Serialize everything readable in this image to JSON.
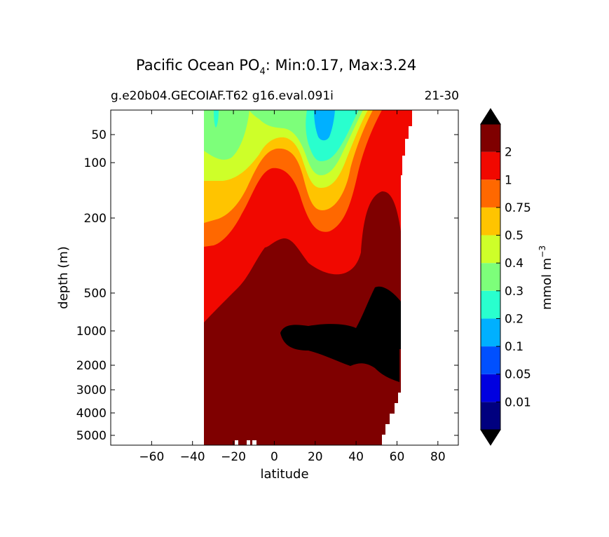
{
  "chart_data": {
    "type": "contourf",
    "title_main": "Pacific Ocean PO",
    "title_sub": "4",
    "title_rest": ": Min:0.17, Max:3.24",
    "case_label": "g.e20b04.GECOIAF.T62 g16.eval.091i",
    "year_label": "21-30",
    "xlabel": "latitude",
    "ylabel": "depth (m)",
    "xlim": [
      -80,
      90
    ],
    "xticks": [
      {
        "value": -60,
        "label": "−60"
      },
      {
        "value": -40,
        "label": "−40"
      },
      {
        "value": -20,
        "label": "−20"
      },
      {
        "value": 0,
        "label": "0"
      },
      {
        "value": 20,
        "label": "20"
      },
      {
        "value": 40,
        "label": "40"
      },
      {
        "value": 60,
        "label": "60"
      },
      {
        "value": 80,
        "label": "80"
      }
    ],
    "yticks": [
      {
        "value": 50,
        "label": "50"
      },
      {
        "value": 100,
        "label": "100"
      },
      {
        "value": 200,
        "label": "200"
      },
      {
        "value": 500,
        "label": "500"
      },
      {
        "value": 1000,
        "label": "1000"
      },
      {
        "value": 2000,
        "label": "2000"
      },
      {
        "value": 3000,
        "label": "3000"
      },
      {
        "value": 4000,
        "label": "4000"
      },
      {
        "value": 5000,
        "label": "5000"
      }
    ],
    "colorbar": {
      "label": "mmol m",
      "label_sup": "−3",
      "levels": [
        "0.01",
        "0.05",
        "0.1",
        "0.2",
        "0.3",
        "0.4",
        "0.5",
        "0.75",
        "1",
        "2"
      ],
      "colors": [
        "#00007f",
        "#0000e0",
        "#0050ff",
        "#00b0ff",
        "#29ffce",
        "#7dff7a",
        "#ceff29",
        "#ffc400",
        "#ff6800",
        "#f10800",
        "#7f0000"
      ],
      "under_color": "#000000",
      "over_color": "#000000"
    }
  }
}
